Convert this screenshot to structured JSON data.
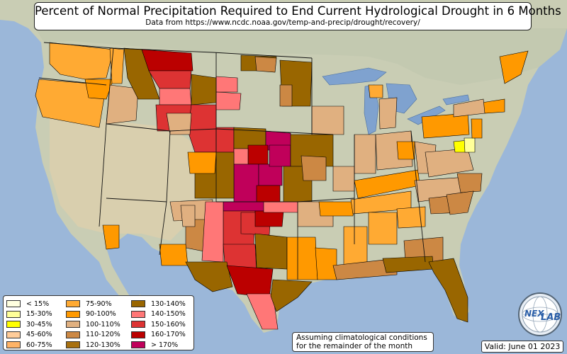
{
  "header": {
    "title": "Percent of Normal Precipitation Required to End Current Hydrological Drought in 6 Months",
    "subtitle": "Data from https://www.ncdc.noaa.gov/temp-and-precip/drought/recovery/"
  },
  "legend": {
    "items": [
      {
        "label": "< 15%",
        "color": "#ffffe0"
      },
      {
        "label": "15-30%",
        "color": "#ffff99"
      },
      {
        "label": "30-45%",
        "color": "#ffff00"
      },
      {
        "label": "45-60%",
        "color": "#ffcc99"
      },
      {
        "label": "60-75%",
        "color": "#ffb366"
      },
      {
        "label": "75-90%",
        "color": "#ffaa33"
      },
      {
        "label": "90-100%",
        "color": "#ff9900"
      },
      {
        "label": "100-110%",
        "color": "#e0b080"
      },
      {
        "label": "110-120%",
        "color": "#cc8844"
      },
      {
        "label": "120-130%",
        "color": "#a8700f"
      },
      {
        "label": "130-140%",
        "color": "#996600"
      },
      {
        "label": "140-150%",
        "color": "#ff7777"
      },
      {
        "label": "150-160%",
        "color": "#dd3333"
      },
      {
        "label": "160-170%",
        "color": "#bb0000"
      },
      {
        "label": "> 170%",
        "color": "#c0005a"
      }
    ]
  },
  "note": {
    "line1": "Assuming climatological conditions",
    "line2": "for the remainder of the month"
  },
  "valid": "Valid: June 01 2023",
  "logo": {
    "icon": "nexlab-globe-icon",
    "text_left": "NEX",
    "text_right": "LAB"
  },
  "colors": {
    "ocean": "#9bb7d9",
    "land": "#c9cdb4",
    "land_west": "#d9cfae",
    "great_lakes": "#7fa2cf",
    "border": "#000000"
  }
}
